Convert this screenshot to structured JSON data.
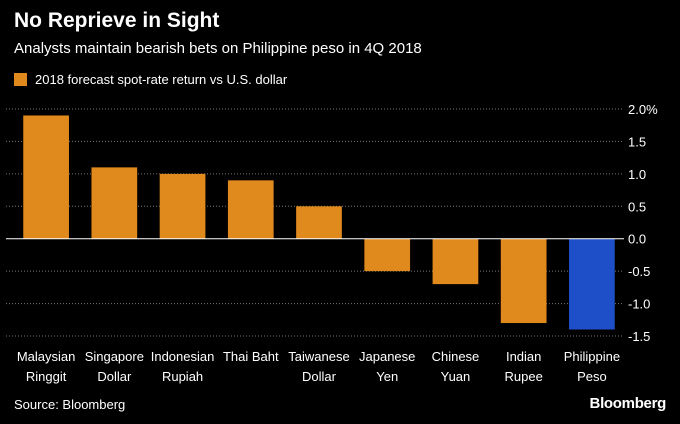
{
  "header": {
    "title": "No Reprieve in Sight",
    "subtitle": "Analysts maintain bearish bets on Philippine peso in 4Q 2018"
  },
  "footer": {
    "source": "Source: Bloomberg",
    "brand": "Bloomberg"
  },
  "colors": {
    "default_bar": "#e08a1e",
    "highlight_bar": "#1f4fc8",
    "zero_line": "#ffffff",
    "grid": "#777777"
  },
  "chart_data": {
    "type": "bar",
    "legend": [
      "2018 forecast spot-rate return vs U.S. dollar"
    ],
    "legend_position": "top-left",
    "categories": [
      [
        "Malaysian",
        "Ringgit"
      ],
      [
        "Singapore",
        "Dollar"
      ],
      [
        "Indonesian",
        "Rupiah"
      ],
      [
        "Thai Baht"
      ],
      [
        "Taiwanese",
        "Dollar"
      ],
      [
        "Japanese",
        "Yen"
      ],
      [
        "Chinese",
        "Yuan"
      ],
      [
        "Indian",
        "Rupee"
      ],
      [
        "Philippine",
        "Peso"
      ]
    ],
    "values": [
      1.9,
      1.1,
      1.0,
      0.9,
      0.5,
      -0.5,
      -0.7,
      -1.3,
      -1.4
    ],
    "highlight_index": 8,
    "yticks": [
      2.0,
      1.5,
      1.0,
      0.5,
      0.0,
      -0.5,
      -1.0,
      -1.5
    ],
    "ytick_labels": [
      "2.0%",
      "1.5",
      "1.0",
      "0.5",
      "0.0",
      "-0.5",
      "-1.0",
      "-1.5"
    ],
    "ylim": [
      -1.5,
      2.0
    ],
    "y_axis_side": "right",
    "grid": true
  }
}
